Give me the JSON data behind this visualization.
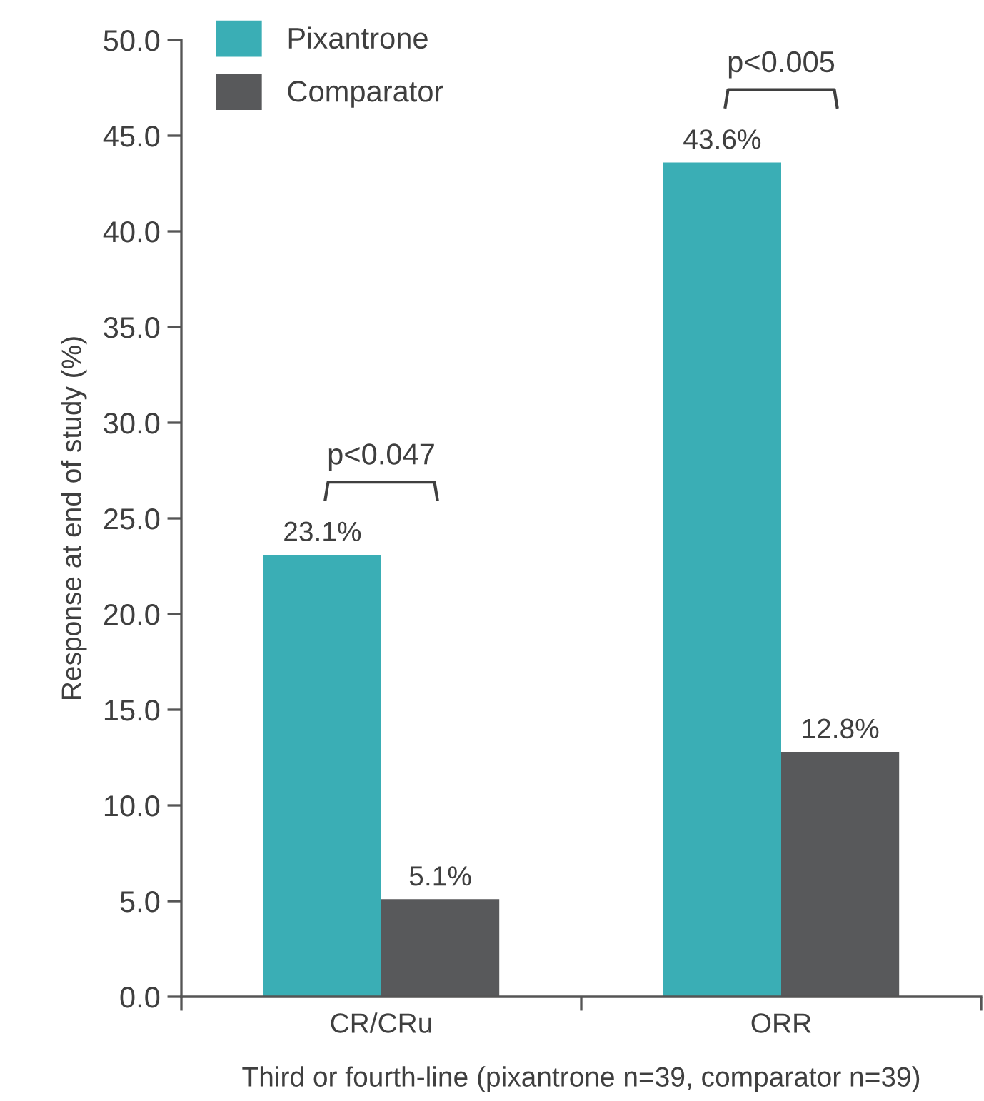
{
  "chart_data": {
    "type": "bar",
    "xlabel": "Third or fourth-line (pixantrone n=39, comparator n=39)",
    "ylabel": "Response at end of study (%)",
    "categories": [
      "CR/CRu",
      "ORR"
    ],
    "series": [
      {
        "name": "Pixantrone",
        "color": "#3aaeb5",
        "values": [
          23.1,
          43.6
        ],
        "value_labels": [
          "23.1%",
          "43.6%"
        ]
      },
      {
        "name": "Comparator",
        "color": "#58595b",
        "values": [
          5.1,
          12.8
        ],
        "value_labels": [
          "5.1%",
          "12.8%"
        ]
      }
    ],
    "ylim": [
      0,
      50
    ],
    "yticks": [
      {
        "value": 0,
        "label": "0.0"
      },
      {
        "value": 5,
        "label": "5.0"
      },
      {
        "value": 10,
        "label": "10.0"
      },
      {
        "value": 15,
        "label": "15.0"
      },
      {
        "value": 20,
        "label": "20.0"
      },
      {
        "value": 25,
        "label": "25.0"
      },
      {
        "value": 30,
        "label": "30.0"
      },
      {
        "value": 35,
        "label": "35.0"
      },
      {
        "value": 40,
        "label": "40.0"
      },
      {
        "value": 45,
        "label": "45.0"
      },
      {
        "value": 50,
        "label": "50.0"
      }
    ],
    "annotations": [
      "p<0.047",
      "p<0.005"
    ],
    "legend": "top left",
    "grid": false
  }
}
